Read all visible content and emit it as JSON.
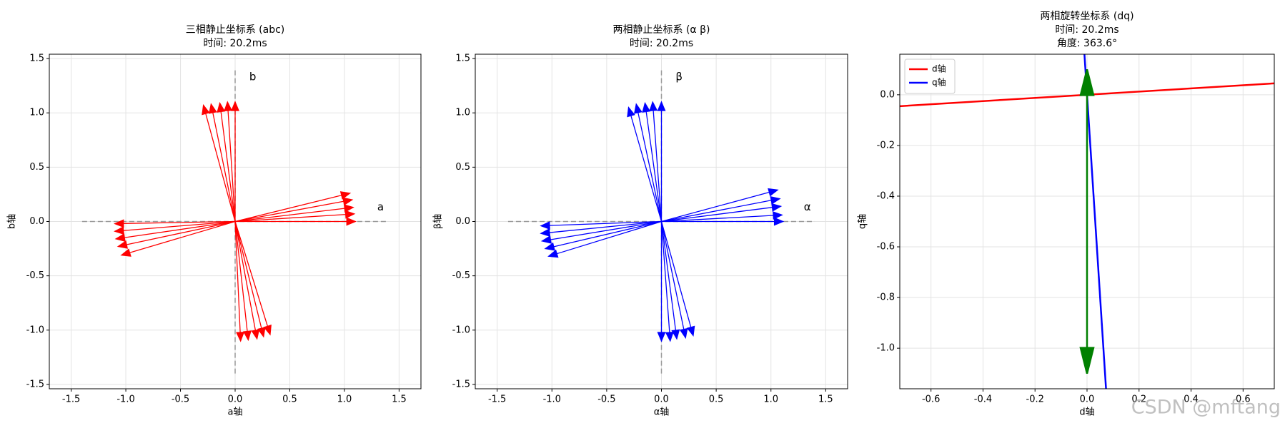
{
  "chart_data": [
    {
      "type": "quiver",
      "title": [
        "三相静止坐标系 (abc)",
        "时间: 20.2ms"
      ],
      "xlabel": "a轴",
      "ylabel": "b轴",
      "xlim": [
        -1.7,
        1.7
      ],
      "ylim": [
        -1.54,
        1.54
      ],
      "xticks": [
        -1.5,
        {
          "value": -1,
          "label": "-1.0"
        },
        -0.5,
        {
          "value": 0,
          "label": "0.0"
        },
        0.5,
        {
          "value": 1,
          "label": "1.0"
        },
        1.5
      ],
      "yticks": [
        -1.5,
        {
          "value": -1,
          "label": "-1.0"
        },
        -0.5,
        {
          "value": 0,
          "label": "0.0"
        },
        0.5,
        {
          "value": 1,
          "label": "1.0"
        },
        1.5
      ],
      "grid": true,
      "reference_extent": 1.4,
      "annotations": [
        {
          "text": "a",
          "x": 1.3,
          "y": 0.13
        },
        {
          "text": "b",
          "x": 0.13,
          "y": 1.33
        }
      ],
      "arrows": {
        "color": "red",
        "u": [
          1.1,
          1.09,
          1.08,
          1.07,
          1.05,
          0,
          -0.07,
          -0.14,
          -0.22,
          -0.29,
          -1.1,
          -1.1,
          -1.09,
          -1.07,
          -1.04,
          0.05,
          0.12,
          0.2,
          0.26,
          0.32
        ],
        "v": [
          0,
          0.07,
          0.13,
          0.2,
          0.26,
          1.1,
          1.1,
          1.09,
          1.08,
          1.07,
          -0.02,
          -0.09,
          -0.16,
          -0.23,
          -0.31,
          -1.1,
          -1.09,
          -1.08,
          -1.06,
          -1.04
        ]
      }
    },
    {
      "type": "quiver",
      "title": [
        "两相静止坐标系 (α β)",
        "时间: 20.2ms"
      ],
      "xlabel": "α轴",
      "ylabel": "β轴",
      "xlim": [
        -1.7,
        1.7
      ],
      "ylim": [
        -1.54,
        1.54
      ],
      "xticks": [
        -1.5,
        {
          "value": -1,
          "label": "-1.0"
        },
        -0.5,
        {
          "value": 0,
          "label": "0.0"
        },
        0.5,
        {
          "value": 1,
          "label": "1.0"
        },
        1.5
      ],
      "yticks": [
        -1.5,
        {
          "value": -1,
          "label": "-1.0"
        },
        -0.5,
        {
          "value": 0,
          "label": "0.0"
        },
        0.5,
        {
          "value": 1,
          "label": "1.0"
        },
        1.5
      ],
      "grid": true,
      "reference_extent": 1.4,
      "annotations": [
        {
          "text": "α",
          "x": 1.3,
          "y": 0.13
        },
        {
          "text": "β",
          "x": 0.13,
          "y": 1.33
        }
      ],
      "arrows": {
        "color": "blue",
        "u": [
          1.11,
          1.1,
          1.09,
          1.08,
          1.06,
          0,
          -0.08,
          -0.15,
          -0.23,
          -0.3,
          -1.1,
          -1.1,
          -1.09,
          -1.06,
          -1.03,
          0,
          0.08,
          0.14,
          0.22,
          0.29
        ],
        "v": [
          0,
          0.06,
          0.14,
          0.21,
          0.29,
          1.1,
          1.1,
          1.09,
          1.08,
          1.05,
          -0.04,
          -0.11,
          -0.18,
          -0.25,
          -0.32,
          -1.1,
          -1.1,
          -1.08,
          -1.07,
          -1.05
        ]
      }
    },
    {
      "type": "line",
      "title": [
        "两相旋转坐标系 (dq)",
        "时间: 20.2ms",
        "角度: 363.6°"
      ],
      "xlabel": "d轴",
      "ylabel": "q轴",
      "xlim": [
        -0.72,
        0.72
      ],
      "ylim": [
        -1.16,
        0.16
      ],
      "xticks": [
        -0.6,
        -0.4,
        -0.2,
        {
          "value": 0,
          "label": "0.0"
        },
        0.2,
        0.4,
        0.6
      ],
      "yticks": [
        {
          "value": -1,
          "label": "-1.0"
        },
        -0.8,
        -0.6,
        -0.4,
        -0.2,
        {
          "value": 0,
          "label": "0.0"
        }
      ],
      "grid": true,
      "legend": "upper left",
      "series": [
        {
          "name": "d轴",
          "color": "red",
          "x": [
            -0.72,
            0.72
          ],
          "y": [
            -0.045,
            0.045
          ]
        },
        {
          "name": "q轴",
          "color": "blue",
          "x": [
            -0.01,
            0.073
          ],
          "y": [
            0.16,
            -1.16
          ]
        }
      ],
      "arrows": {
        "color": "green",
        "u": [
          0,
          0
        ],
        "v": [
          0.1,
          -1.1
        ]
      }
    }
  ],
  "watermark": "CSDN @mftang"
}
